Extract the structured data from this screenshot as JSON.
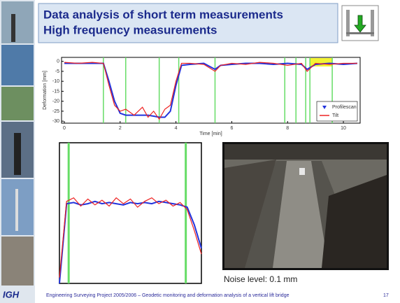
{
  "slide": {
    "title_lines": [
      "Data analysis of short term measurements",
      "High frequency measurements"
    ],
    "noise_label": "Noise level: 0.1 mm",
    "logo": "IGH",
    "footer": "Engineering Surveying Project 2005/2006 – Geodetic monitoring and deformation  analysis of a vertical lift bridge",
    "page_number": "17"
  },
  "chart_data": [
    {
      "type": "line",
      "ylabel": "Deformation [mm]",
      "xlabel": "Time [min]",
      "x": [
        0,
        0.5,
        1,
        1.4,
        1.6,
        1.8,
        2.0,
        2.2,
        2.5,
        2.8,
        3.0,
        3.2,
        3.4,
        3.6,
        3.8,
        4.0,
        4.2,
        4.5,
        5,
        5.4,
        5.6,
        6,
        6.5,
        7,
        7.5,
        8,
        8.5,
        8.7,
        9,
        9.5,
        10,
        10.5
      ],
      "series": [
        {
          "name": "Profilescan",
          "color": "#2233dd",
          "values": [
            -1,
            -1,
            -1,
            -1,
            -10,
            -20,
            -26,
            -27,
            -27,
            -27,
            -27,
            -27.5,
            -28,
            -28,
            -25,
            -12,
            -2,
            -1.5,
            -1,
            -4,
            -2,
            -1.5,
            -1,
            -1,
            -1.5,
            -1,
            -1.5,
            -4,
            -1.5,
            -1,
            -1.5,
            -1
          ]
        },
        {
          "name": "Tilt",
          "color": "#ee2222",
          "values": [
            -0.5,
            -1,
            -0.5,
            -1,
            -12,
            -22,
            -25,
            -24,
            -27,
            -23,
            -28,
            -25,
            -29,
            -24,
            -22,
            -10,
            -1,
            -1,
            -1.5,
            -5,
            -2,
            -1,
            -1.5,
            -0.5,
            -1,
            -2,
            -1,
            -5,
            -1,
            -1.5,
            -1,
            -1
          ]
        }
      ],
      "xlim": [
        -0.1,
        10.6
      ],
      "ylim": [
        -31,
        2
      ],
      "xticks": [
        0,
        2,
        4,
        6,
        8,
        10
      ],
      "yticks": [
        0,
        -5,
        -10,
        -15,
        -20,
        -25,
        -30
      ],
      "event_lines": [
        1.4,
        2.2,
        3.4,
        4.1,
        5.4,
        7.9,
        8.3,
        8.65,
        8.8,
        9.6
      ],
      "highlight": [
        8.8,
        9.6
      ],
      "legend": "lower right"
    },
    {
      "type": "line",
      "x": [
        0,
        1,
        2,
        3,
        4,
        5,
        6,
        7,
        8,
        9,
        10,
        11,
        12,
        13,
        14,
        15,
        16,
        17,
        18,
        19,
        20
      ],
      "series": [
        {
          "color": "#2233dd",
          "values": [
            0,
            6.8,
            6.9,
            6.7,
            6.8,
            7,
            6.8,
            6.9,
            6.8,
            6.7,
            6.9,
            6.8,
            6.9,
            6.8,
            7,
            6.9,
            6.8,
            6.7,
            6.5,
            5,
            3
          ]
        },
        {
          "color": "#ee2222",
          "values": [
            0.5,
            7,
            7.3,
            6.6,
            7.2,
            6.7,
            7.1,
            6.6,
            7.3,
            6.8,
            7.2,
            6.5,
            7,
            7.3,
            6.8,
            7.1,
            6.6,
            6.9,
            6.3,
            4.5,
            2.5
          ]
        }
      ],
      "xlim": [
        0,
        20
      ],
      "ylim": [
        0,
        12
      ],
      "event_lines": [
        1.3,
        17.8
      ]
    }
  ]
}
